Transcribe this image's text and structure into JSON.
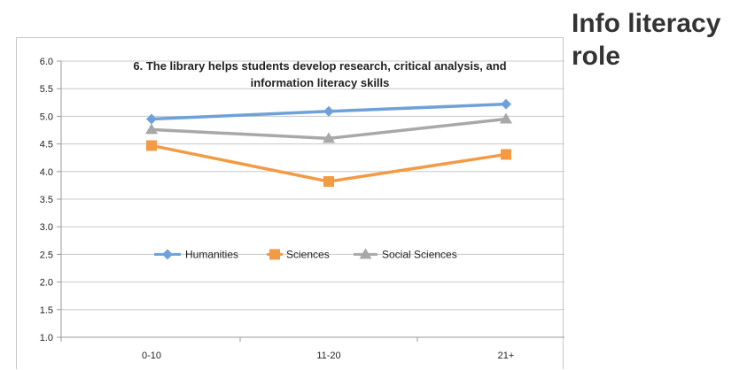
{
  "slide": {
    "title": "Info literacy\nrole"
  },
  "colors": {
    "Humanities": "#6fa1d9",
    "Sciences": "#f39a45",
    "Social Sciences": "#a8a8a8",
    "grid": "#c8c8c8",
    "axis": "#999999"
  },
  "chart_data": {
    "type": "line",
    "title": "6. The library helps students develop research, critical analysis, and information literacy skills",
    "title_lines": [
      "6. The library helps students develop research, critical analysis, and",
      "information literacy skills"
    ],
    "categories": [
      "0-10",
      "11-20",
      "21+"
    ],
    "series": [
      {
        "name": "Humanities",
        "marker": "diamond",
        "values": [
          4.95,
          5.09,
          5.22
        ]
      },
      {
        "name": "Sciences",
        "marker": "square",
        "values": [
          4.47,
          3.82,
          4.31
        ]
      },
      {
        "name": "Social Sciences",
        "marker": "triangle",
        "values": [
          4.76,
          4.6,
          4.95
        ]
      }
    ],
    "ylim": [
      1.0,
      6.0
    ],
    "yticks": [
      "1.0",
      "1.5",
      "2.0",
      "2.5",
      "3.0",
      "3.5",
      "4.0",
      "4.5",
      "5.0",
      "5.5",
      "6.0"
    ],
    "xlabel": "",
    "ylabel": "",
    "grid": true,
    "legend": "inside-lower-center"
  }
}
